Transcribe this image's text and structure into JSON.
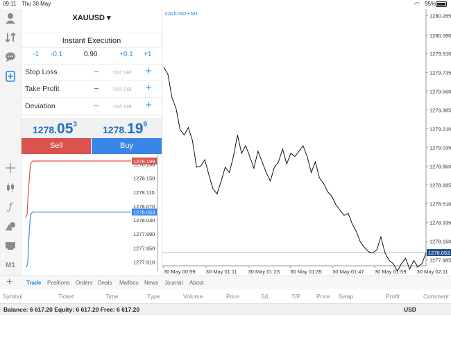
{
  "status": {
    "time": "09:11",
    "date": "Thu 30 May",
    "battery": "95%"
  },
  "rail": {
    "icons": [
      "account-icon",
      "transfer-icon",
      "chat-icon",
      "new-order-icon",
      "crosshair-icon",
      "candle-icon",
      "function-icon",
      "objects-icon",
      "template-icon",
      "timeframe-icon"
    ],
    "timeframe": "M1"
  },
  "order": {
    "symbol": "XAUUSD ▾",
    "execution": "Instant Execution",
    "volume_steps": [
      "-1",
      "-0.1",
      "0.90",
      "+0.1",
      "+1"
    ],
    "rows": [
      {
        "label": "Stop Loss",
        "value": "not set"
      },
      {
        "label": "Take Profit",
        "value": "not set"
      },
      {
        "label": "Deviation",
        "value": "not set"
      }
    ],
    "sell_price": {
      "small": "1278.",
      "big": "05",
      "sup": "3"
    },
    "buy_price": {
      "small": "1278.",
      "big": "19",
      "sup": "9"
    },
    "sell_label": "Sell",
    "buy_label": "Buy"
  },
  "tick_chart": {
    "levels": [
      "1278.190",
      "1278.150",
      "1278.110",
      "1278.070",
      "1278.030",
      "1277.990",
      "1277.950",
      "1277.910"
    ],
    "ask_tag": "1278.199",
    "bid_tag": "1278.053",
    "ask": 1278.199,
    "bid": 1278.053,
    "ask_color": "#e05050",
    "bid_color": "#3a86e8"
  },
  "chart_data": {
    "type": "line",
    "title": "XAUUSD • M1",
    "y_ticks": [
      "1280.265",
      "1280.080",
      "1279.910",
      "1279.735",
      "1279.560",
      "1279.385",
      "1279.210",
      "1279.035",
      "1278.860",
      "1278.685",
      "1278.510",
      "1278.335",
      "1278.160",
      "1277.985"
    ],
    "ylim": [
      1277.93,
      1280.3
    ],
    "x_ticks": [
      "30 May 00:59",
      "30 May 01:11",
      "30 May 01:23",
      "30 May 01:35",
      "30 May 01:47",
      "30 May 01:59",
      "30 May 02:11"
    ],
    "current_price_tag": "1278.053",
    "current_price": 1278.053,
    "series": [
      {
        "values": [
          1279.78,
          1279.72,
          1279.5,
          1279.4,
          1279.2,
          1279.15,
          1279.22,
          1279.1,
          1278.85,
          1278.86,
          1278.92,
          1278.78,
          1278.65,
          1278.6,
          1278.72,
          1278.85,
          1278.8,
          1278.95,
          1279.15,
          1278.98,
          1279.05,
          1278.95,
          1278.84,
          1279.0,
          1278.9,
          1278.8,
          1278.72,
          1278.85,
          1278.9,
          1279.02,
          1278.88,
          1278.98,
          1278.95,
          1279.0,
          1279.05,
          1278.95,
          1278.8,
          1278.9,
          1278.75,
          1278.7,
          1278.62,
          1278.58,
          1278.5,
          1278.45,
          1278.4,
          1278.42,
          1278.32,
          1278.25,
          1278.15,
          1278.1,
          1278.06,
          1278.05,
          1278.08,
          1278.2,
          1278.05,
          1277.98,
          1277.95,
          1277.88,
          1277.95,
          1278.0,
          1277.9,
          1277.98,
          1277.92,
          1277.95,
          1278.05
        ]
      }
    ]
  },
  "tabs": [
    "Trade",
    "Positions",
    "Orders",
    "Deals",
    "Mailbox",
    "News",
    "Journal",
    "About"
  ],
  "columns": [
    "Symbol",
    "Ticket",
    "Time",
    "Type",
    "Volume",
    "Price",
    "S/L",
    "T/P",
    "Price",
    "Swap",
    "Profit",
    "Comment"
  ],
  "balance": "Balance: 6 617.20  Equity: 6 617.20  Free: 6 617.20",
  "currency": "USD"
}
